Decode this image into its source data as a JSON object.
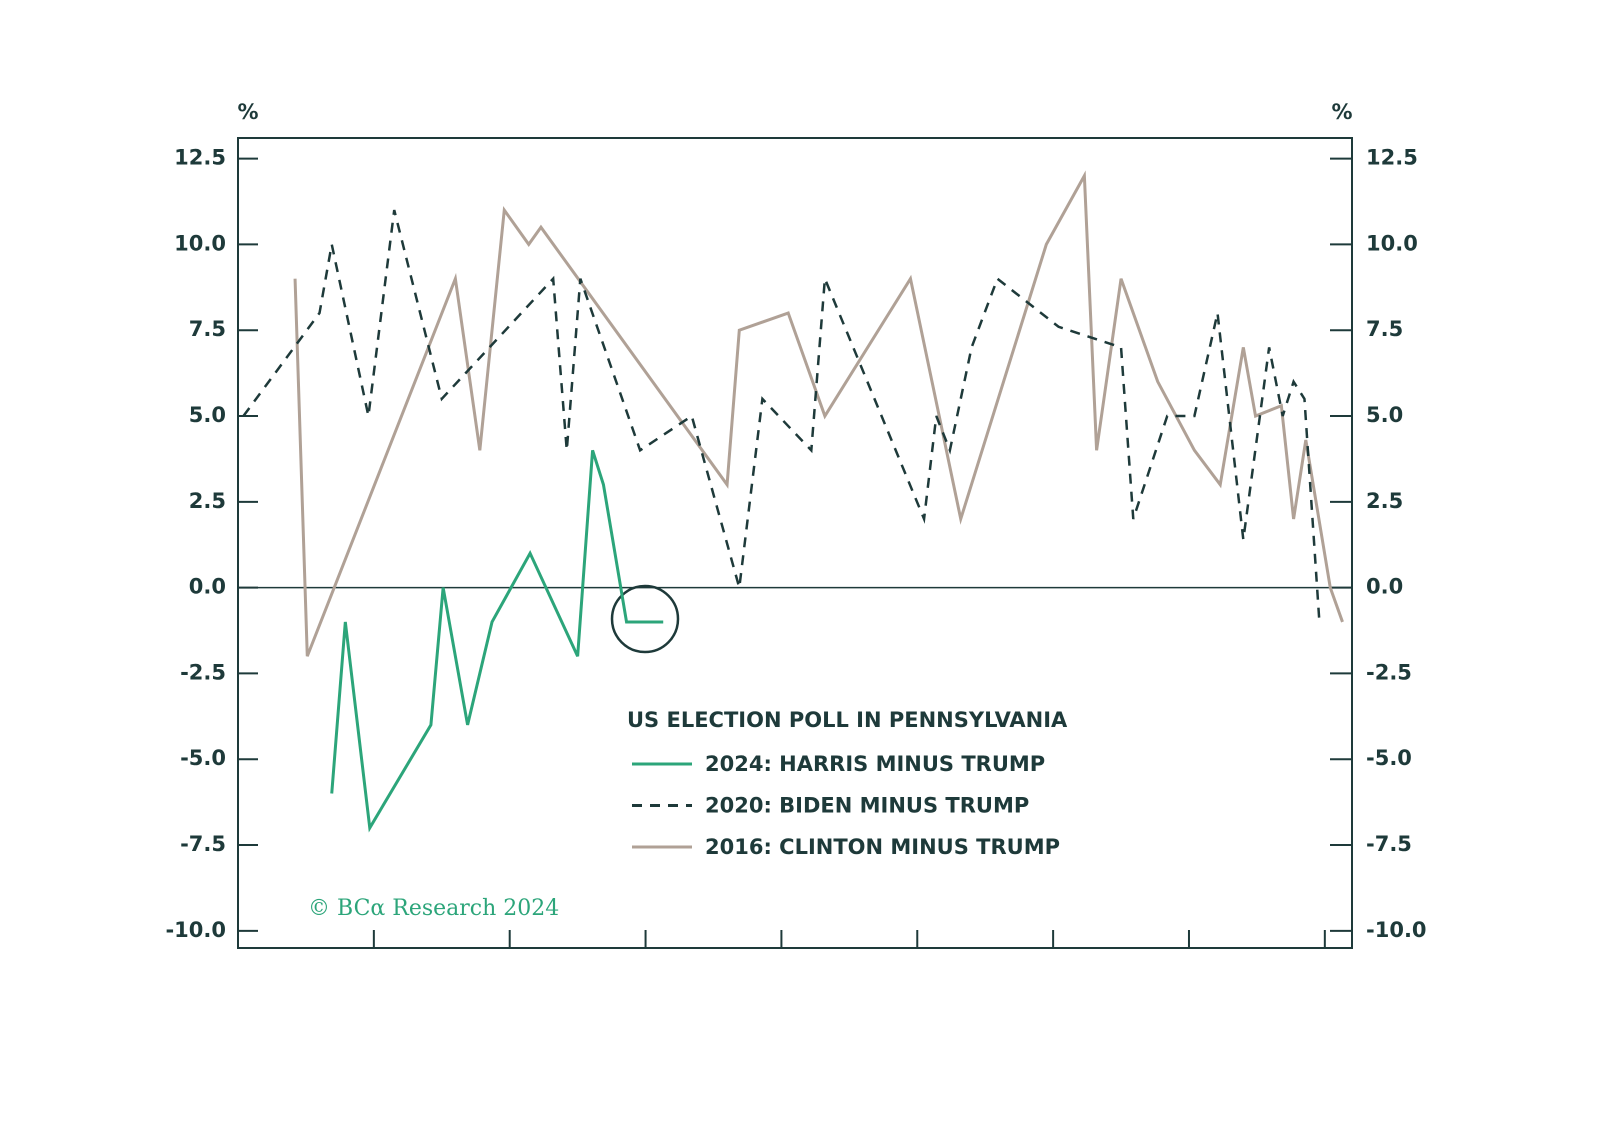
{
  "chart_data": {
    "type": "line",
    "ylabel": "%",
    "y2label": "%",
    "legend_title": "US ELECTION POLL IN PENNSYLVANIA",
    "credit": "© BCα Research 2024",
    "xlim": [
      0,
      82
    ],
    "xticks": [
      10,
      20,
      30,
      40,
      50,
      60,
      70,
      80
    ],
    "ylim": [
      -10.5,
      13.1
    ],
    "yticks": [
      12.5,
      {
        "value": 10,
        "label": "10.0"
      },
      7.5,
      {
        "value": 5,
        "label": "5.0"
      },
      2.5,
      {
        "value": 0,
        "label": "0.0"
      },
      -2.5,
      {
        "value": -5,
        "label": "-5.0"
      },
      -7.5,
      {
        "value": -10,
        "label": "-10.0"
      }
    ],
    "y2lim": [
      -10.5,
      13.1
    ],
    "y2ticks": [
      12.5,
      {
        "value": 10,
        "label": "10.0"
      },
      7.5,
      {
        "value": 5,
        "label": "5.0"
      },
      2.5,
      {
        "value": 0,
        "label": "0.0"
      },
      -2.5,
      {
        "value": -5,
        "label": "-5.0"
      },
      -7.5,
      {
        "value": -10,
        "label": "-10.0"
      }
    ],
    "zero_line": true,
    "series": [
      {
        "name": "2024: HARRIS MINUS TRUMP",
        "color": "#2ca57a",
        "dash": false,
        "x": [
          6.9,
          7.9,
          9.7,
          14.2,
          15.1,
          16.9,
          18.7,
          21.5,
          25.0,
          26.1,
          26.9,
          28.6,
          31.3
        ],
        "values": [
          -6,
          -1,
          -7,
          -4,
          0,
          -4,
          -1,
          1,
          -2,
          4,
          3,
          -1,
          -1
        ]
      },
      {
        "name": "2020: BIDEN MINUS TRUMP",
        "color": "#1e3a3a",
        "dash": true,
        "x": [
          0.4,
          6.0,
          6.9,
          9.6,
          11.5,
          15.0,
          23.2,
          24.2,
          25.2,
          29.6,
          33.4,
          36.9,
          38.6,
          42.2,
          43.2,
          50.5,
          51.4,
          52.4,
          54.0,
          55.9,
          60.4,
          65.0,
          65.9,
          68.4,
          70.4,
          72.1,
          74.0,
          75.9,
          76.9,
          77.7,
          78.5,
          79.6
        ],
        "values": [
          5,
          8,
          10,
          5,
          11,
          5.5,
          9,
          4,
          9,
          4,
          5,
          0,
          5.5,
          4,
          9,
          2,
          5,
          4,
          7,
          9,
          7.6,
          7,
          2,
          5,
          5,
          8,
          1.4,
          7,
          5,
          6,
          5.5,
          -1
        ]
      },
      {
        "name": "2016: CLINTON MINUS TRUMP",
        "color": "#b0a196",
        "dash": false,
        "x": [
          4.2,
          5.1,
          16.0,
          17.8,
          19.6,
          21.4,
          22.3,
          36.0,
          36.9,
          40.5,
          43.2,
          49.5,
          53.2,
          59.5,
          62.3,
          63.2,
          65.0,
          67.7,
          70.4,
          72.3,
          74.0,
          74.9,
          76.8,
          77.7,
          78.6,
          80.4,
          81.3
        ],
        "values": [
          9,
          -2,
          9,
          4,
          11,
          10,
          10.5,
          3,
          7.5,
          8,
          5,
          9,
          2,
          10,
          12,
          4,
          9,
          6,
          4,
          3,
          7,
          5,
          5.3,
          2,
          4.3,
          0,
          -1
        ]
      }
    ]
  }
}
